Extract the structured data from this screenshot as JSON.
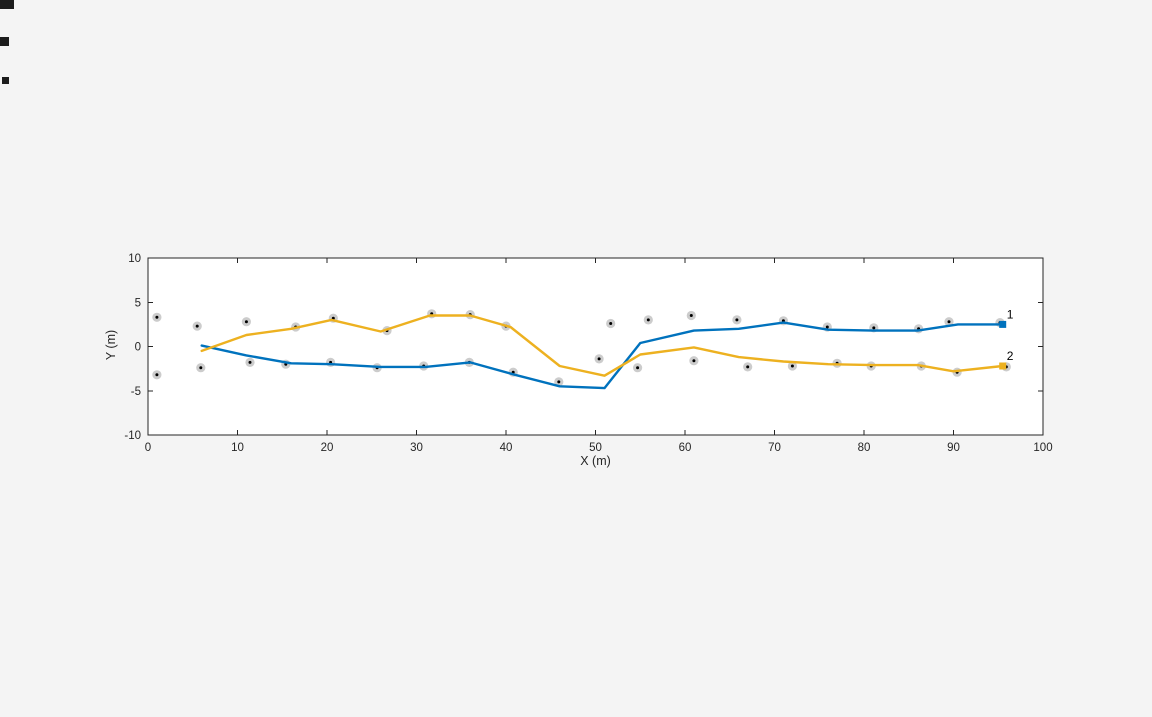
{
  "figure": {
    "background": "#f4f4f4",
    "plot_background": "#ffffff",
    "axis_color": "#262626"
  },
  "chart_data": {
    "type": "line",
    "title": "",
    "xlabel": "X (m)",
    "ylabel": "Y (m)",
    "xlim": [
      0,
      100
    ],
    "ylim": [
      -10,
      10
    ],
    "xticks": [
      0,
      10,
      20,
      30,
      40,
      50,
      60,
      70,
      80,
      90,
      100
    ],
    "yticks": [
      -10,
      -5,
      0,
      5,
      10
    ],
    "grid": false,
    "legend": "none",
    "series": [
      {
        "name": "Track 1",
        "label": "1",
        "color": "#0072BD",
        "x": [
          6,
          11,
          16,
          20.5,
          26,
          31,
          36,
          41,
          46,
          51,
          55,
          61,
          66,
          71,
          76,
          81,
          86,
          90.5,
          95.5
        ],
        "y": [
          0.1,
          -1.0,
          -1.9,
          -2.0,
          -2.3,
          -2.3,
          -1.8,
          -3.2,
          -4.5,
          -4.7,
          0.4,
          1.8,
          2.0,
          2.7,
          1.9,
          1.8,
          1.8,
          2.5,
          2.5
        ]
      },
      {
        "name": "Track 2",
        "label": "2",
        "color": "#EDB120",
        "x": [
          6,
          11,
          16,
          20.5,
          26,
          31.5,
          36,
          40.5,
          46,
          51,
          55,
          61,
          66,
          71,
          76,
          81,
          86,
          90,
          95.5
        ],
        "y": [
          -0.5,
          1.3,
          2.0,
          3.0,
          1.7,
          3.5,
          3.5,
          2.2,
          -2.2,
          -3.3,
          -0.9,
          -0.1,
          -1.2,
          -1.7,
          -2.0,
          -2.1,
          -2.1,
          -2.8,
          -2.2
        ]
      }
    ],
    "detections": {
      "outer_color": "#cccccc",
      "inner_color": "#000000",
      "points": [
        [
          1,
          3.3
        ],
        [
          5.5,
          2.3
        ],
        [
          11,
          2.8
        ],
        [
          16.5,
          2.2
        ],
        [
          20.7,
          3.2
        ],
        [
          26.7,
          1.8
        ],
        [
          31.7,
          3.7
        ],
        [
          36,
          3.6
        ],
        [
          40,
          2.3
        ],
        [
          51.7,
          2.6
        ],
        [
          55.9,
          3.0
        ],
        [
          60.7,
          3.5
        ],
        [
          65.8,
          3.0
        ],
        [
          71,
          2.9
        ],
        [
          75.9,
          2.2
        ],
        [
          81.1,
          2.1
        ],
        [
          86.1,
          2.0
        ],
        [
          89.5,
          2.8
        ],
        [
          95.2,
          2.7
        ],
        [
          1,
          -3.2
        ],
        [
          5.9,
          -2.4
        ],
        [
          11.4,
          -1.8
        ],
        [
          15.4,
          -2.0
        ],
        [
          20.4,
          -1.8
        ],
        [
          25.6,
          -2.4
        ],
        [
          30.8,
          -2.2
        ],
        [
          35.9,
          -1.8
        ],
        [
          40.8,
          -2.9
        ],
        [
          45.9,
          -4.0
        ],
        [
          50.4,
          -1.4
        ],
        [
          54.7,
          -2.4
        ],
        [
          61,
          -1.6
        ],
        [
          67,
          -2.3
        ],
        [
          72,
          -2.2
        ],
        [
          77,
          -1.9
        ],
        [
          80.8,
          -2.2
        ],
        [
          86.4,
          -2.2
        ],
        [
          90.4,
          -2.9
        ],
        [
          95.9,
          -2.3
        ]
      ]
    }
  }
}
